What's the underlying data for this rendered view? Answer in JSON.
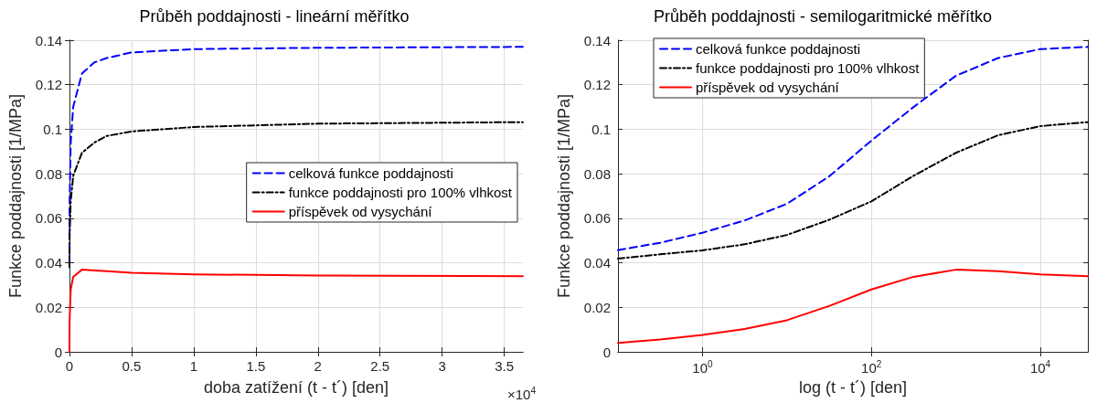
{
  "chart_data": [
    {
      "type": "line",
      "title": "Průběh poddajnosti - lineární měřítko",
      "xlabel": "doba zatížení (t - t´) [den]",
      "ylabel": "Funkce poddajnosti [1/MPa]",
      "annotations": [
        "×10$^{4}$"
      ],
      "xlim": [
        0,
        3.65
      ],
      "xticks": [
        0,
        0.5,
        1,
        1.5,
        2,
        2.5,
        3,
        3.5
      ],
      "ylim": [
        0,
        0.14
      ],
      "yticks": [
        0,
        0.02,
        0.04,
        0.06,
        0.08,
        0.1,
        0.12,
        0.14
      ],
      "grid": true,
      "legend": "right",
      "marker": "none",
      "series": [
        {
          "name": "celková funkce poddajnosti",
          "color": "#0000ff",
          "line_style": "dashed",
          "x": [
            0,
            0.001,
            0.01,
            0.03,
            0.1,
            0.2,
            0.3,
            0.5,
            1,
            2,
            3.65
          ],
          "values": [
            0.04,
            0.066,
            0.094,
            0.11,
            0.125,
            0.13,
            0.132,
            0.1345,
            0.136,
            0.1366,
            0.137
          ]
        },
        {
          "name": "funkce poddajnosti pro 100% vlhkost",
          "color": "#000000",
          "line_style": "dashdot",
          "x": [
            0,
            0.001,
            0.01,
            0.03,
            0.1,
            0.2,
            0.3,
            0.5,
            1,
            2,
            3.65
          ],
          "values": [
            0.038,
            0.0525,
            0.0676,
            0.0791,
            0.0894,
            0.094,
            0.097,
            0.099,
            0.101,
            0.1025,
            0.1032
          ]
        },
        {
          "name": "příspěvek od vysychání",
          "color": "#ff0000",
          "line_style": "solid",
          "x": [
            0,
            0.001,
            0.01,
            0.03,
            0.1,
            0.2,
            0.3,
            0.5,
            1,
            2,
            3.65
          ],
          "values": [
            0,
            0.014,
            0.028,
            0.0337,
            0.0369,
            0.0365,
            0.0362,
            0.0355,
            0.0348,
            0.0343,
            0.034
          ]
        }
      ]
    },
    {
      "type": "line",
      "title": "Průběh poddajnosti - semilogaritmické měřítko",
      "xlabel": "log (t - t´) [den]",
      "ylabel": "Funkce poddajnosti [1/MPa]",
      "log": "x",
      "xlim": [
        0.1,
        36500
      ],
      "xticks": [
        {
          "value": 1,
          "label": "10$^{0}$"
        },
        {
          "value": 100,
          "label": "10$^{2}$"
        },
        {
          "value": 10000,
          "label": "10$^{4}$"
        }
      ],
      "ylim": [
        0,
        0.14
      ],
      "yticks": [
        0,
        0.02,
        0.04,
        0.06,
        0.08,
        0.1,
        0.12,
        0.14
      ],
      "grid": true,
      "legend": "top left",
      "marker": "none",
      "series": [
        {
          "name": "celková funkce poddajnosti",
          "color": "#0000ff",
          "line_style": "dashed",
          "x": [
            0.1,
            0.316,
            1,
            3.16,
            10,
            31.6,
            100,
            316,
            1000,
            3160,
            10000,
            36500
          ],
          "values": [
            0.0457,
            0.049,
            0.0535,
            0.059,
            0.0665,
            0.0788,
            0.0949,
            0.11,
            0.124,
            0.132,
            0.136,
            0.137
          ]
        },
        {
          "name": "funkce poddajnosti pro 100% vlhkost",
          "color": "#000000",
          "line_style": "dashdot",
          "x": [
            0.1,
            0.316,
            1,
            3.16,
            10,
            31.6,
            100,
            316,
            1000,
            3160,
            10000,
            36500
          ],
          "values": [
            0.0419,
            0.0438,
            0.0456,
            0.0483,
            0.0525,
            0.0593,
            0.0676,
            0.0791,
            0.0894,
            0.0973,
            0.1014,
            0.1032
          ]
        },
        {
          "name": "příspěvek od vysychání",
          "color": "#ff0000",
          "line_style": "solid",
          "x": [
            0.1,
            0.316,
            1,
            3.16,
            10,
            31.6,
            100,
            316,
            1000,
            3160,
            10000,
            36500
          ],
          "values": [
            0.004,
            0.0055,
            0.0076,
            0.0103,
            0.0142,
            0.0206,
            0.028,
            0.0337,
            0.0369,
            0.0362,
            0.0348,
            0.034
          ]
        }
      ]
    }
  ]
}
